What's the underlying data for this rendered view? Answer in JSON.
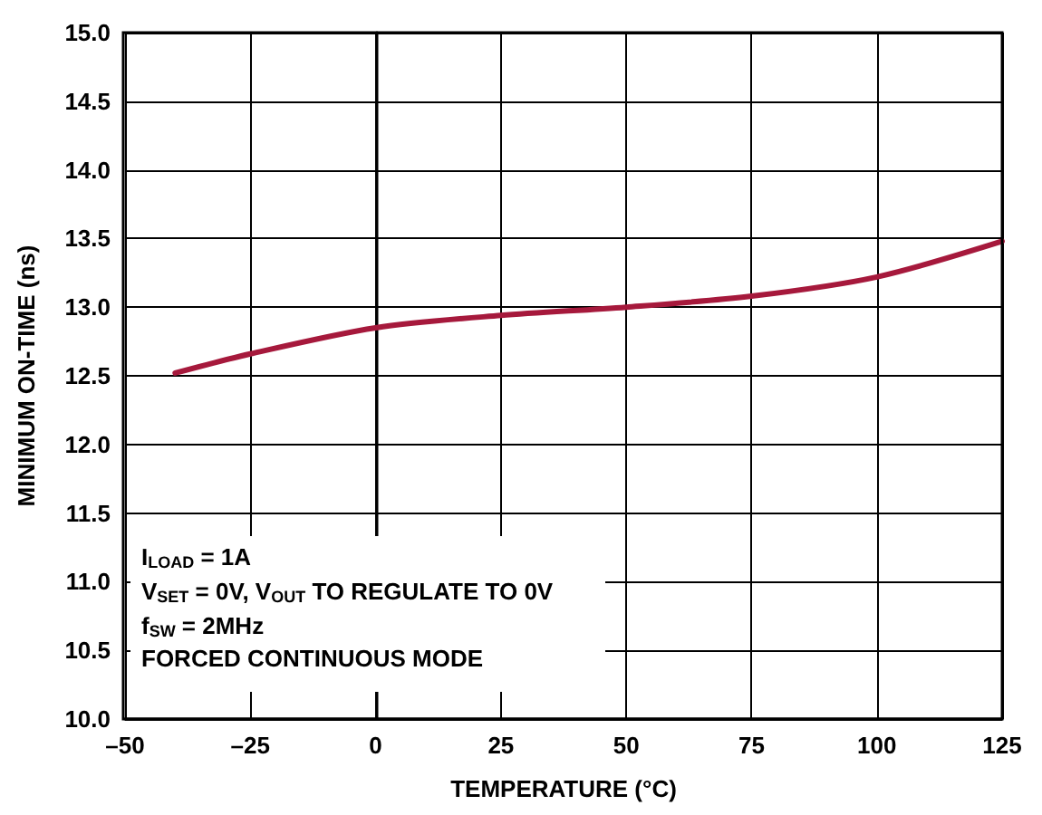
{
  "chart_data": {
    "type": "line",
    "xlabel": "TEMPERATURE (°C)",
    "ylabel": "MINIMUM ON-TIME (ns)",
    "x": [
      -40,
      -25,
      0,
      25,
      50,
      75,
      100,
      125
    ],
    "series": [
      {
        "color": "#a6193c",
        "values": [
          12.52,
          12.66,
          12.85,
          12.94,
          13.0,
          13.08,
          13.22,
          13.48
        ]
      }
    ],
    "xlim": [
      -50,
      125
    ],
    "xticks": [
      {
        "value": -50,
        "label": "–50"
      },
      {
        "value": -25,
        "label": "–25"
      },
      0,
      25,
      50,
      75,
      100,
      125
    ],
    "ylim": [
      10,
      15
    ],
    "yticks": [
      {
        "value": 10,
        "label": "10.0"
      },
      10.5,
      {
        "value": 11,
        "label": "11.0"
      },
      11.5,
      {
        "value": 12,
        "label": "12.0"
      },
      12.5,
      {
        "value": 13,
        "label": "13.0"
      },
      13.5,
      {
        "value": 14,
        "label": "14.0"
      },
      14.5,
      {
        "value": 15,
        "label": "15.0"
      }
    ],
    "grid": true,
    "marker": "none",
    "line_style": "solid",
    "annotations": [
      "I$_{LOAD}$ = 1A",
      "V$_{SET}$ = 0V, V$_{OUT}$ TO REGULATE TO 0V",
      "f$_{SW}$ = 2MHz",
      "FORCED CONTINUOUS MODE"
    ]
  }
}
